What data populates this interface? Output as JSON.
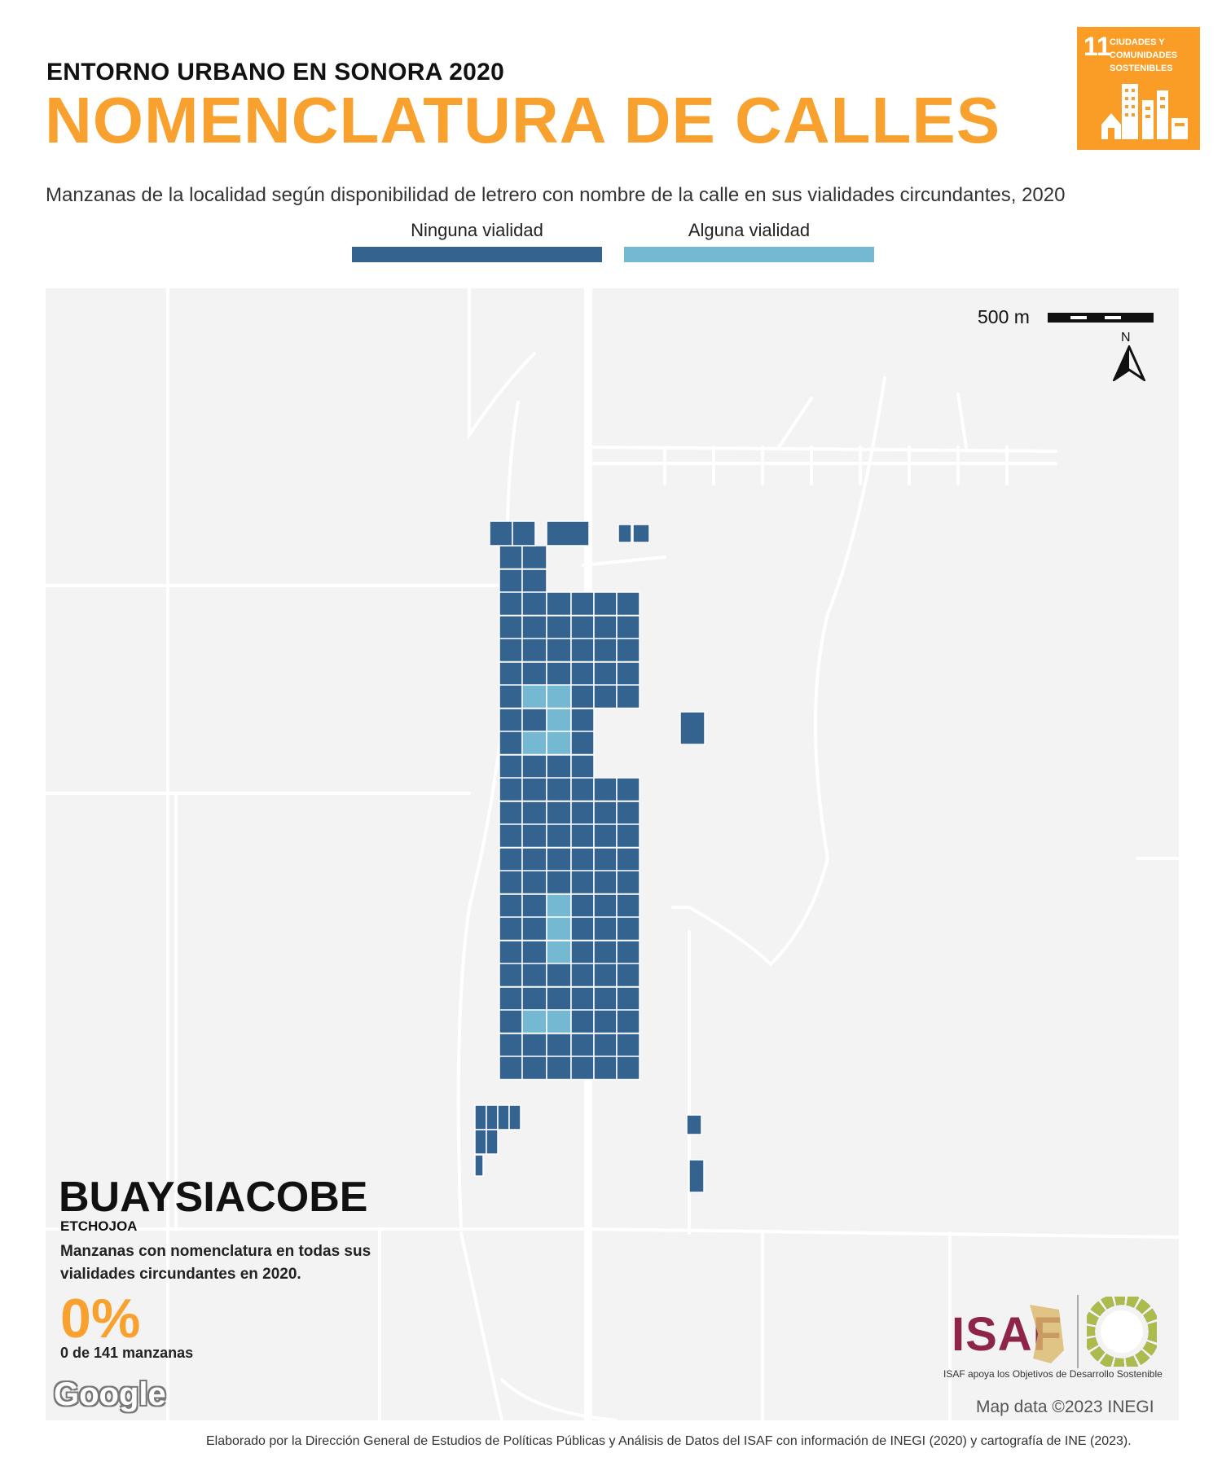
{
  "header": {
    "kicker": "ENTORNO URBANO EN SONORA 2020",
    "title": "NOMENCLATURA DE CALLES",
    "subtitle": "Manzanas de la localidad según disponibilidad de letrero con nombre de la calle en sus vialidades circundantes, 2020"
  },
  "legend": {
    "items": [
      {
        "label": "Ninguna vialidad",
        "color": "#34638f"
      },
      {
        "label": "Alguna vialidad",
        "color": "#74b8d2"
      }
    ]
  },
  "sdg_badge": {
    "number": "11",
    "text": "CIUDADES Y COMUNIDADES SOSTENIBLES",
    "color": "#f99d26"
  },
  "map": {
    "scale_label": "500 m",
    "north_label": "N",
    "attribution": "Map data ©2023 INEGI",
    "provider_logo": "Google"
  },
  "summary": {
    "locality": "BUAYSIACOBE",
    "municipality": "ETCHOJOA",
    "description": "Manzanas con nomenclatura en todas sus vialidades circundantes en 2020.",
    "percent": "0%",
    "count_text": "0 de 141 manzanas"
  },
  "logos": {
    "isaf": "ISAF",
    "isaf_tagline": "ISAF apoya los Objetivos de Desarrollo Sostenible",
    "sdg_wheel": "sdg-wheel-icon"
  },
  "footer": {
    "credit": "Elaborado por la Dirección General de Estudios de Políticas Públicas y Análisis de Datos del ISAF con información de INEGI (2020) y cartografía de INE (2023)."
  }
}
